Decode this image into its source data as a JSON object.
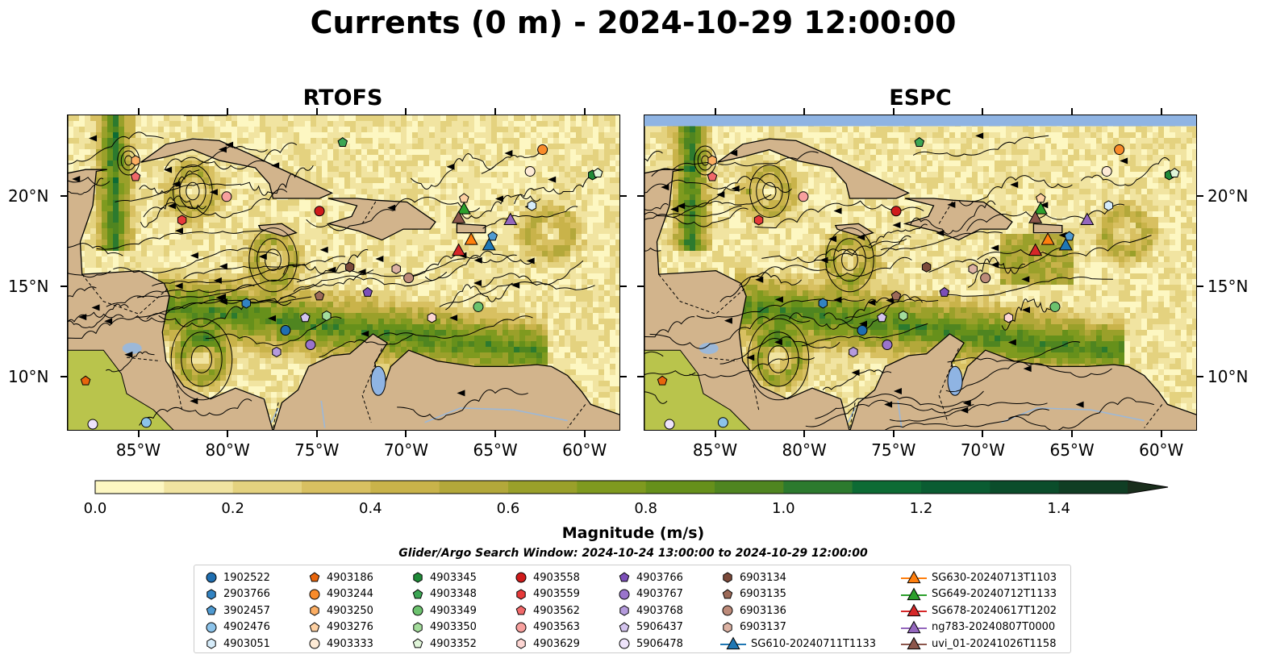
{
  "title": "Currents (0 m) - 2024-10-29 12:00:00",
  "panels": [
    {
      "id": "rtofs",
      "title": "RTOFS"
    },
    {
      "id": "espc",
      "title": "ESPC"
    }
  ],
  "axes": {
    "x_ticks": [
      "85°W",
      "80°W",
      "75°W",
      "70°W",
      "65°W",
      "60°W"
    ],
    "y_ticks": [
      "20°N",
      "15°N",
      "10°N"
    ],
    "lon_range": [
      -89,
      -58
    ],
    "lat_range": [
      7,
      24.5
    ]
  },
  "colorbar": {
    "label": "Magnitude (m/s)",
    "ticks": [
      "0.0",
      "0.2",
      "0.4",
      "0.6",
      "0.8",
      "1.0",
      "1.2",
      "1.4"
    ],
    "range": [
      0,
      1.6
    ],
    "extend": "max",
    "colors": [
      "#fdf7c2",
      "#f1e4a1",
      "#e4d27f",
      "#d8c061",
      "#c9b34a",
      "#b3a83a",
      "#9aa02a",
      "#7f9a1f",
      "#66901b",
      "#4f8520",
      "#2c7a2e",
      "#0d6b34",
      "#0a5c32",
      "#0b4d2b",
      "#103e24",
      "#1a2e1c"
    ]
  },
  "search_window": "Glider/Argo Search Window: 2024-10-24 13:00:00 to 2024-10-29 12:00:00",
  "legend": [
    {
      "label": "1902522",
      "marker": "circle",
      "color": "#1f6eb0"
    },
    {
      "label": "2903766",
      "marker": "hexagon",
      "color": "#3283c2"
    },
    {
      "label": "3902457",
      "marker": "pentagon",
      "color": "#4f9ad1"
    },
    {
      "label": "4902476",
      "marker": "circle",
      "color": "#8cc3ea"
    },
    {
      "label": "4903051",
      "marker": "hexagon",
      "color": "#d6ecfa"
    },
    {
      "label": "4903186",
      "marker": "pentagon",
      "color": "#e8650c"
    },
    {
      "label": "4903244",
      "marker": "circle",
      "color": "#f98b2a"
    },
    {
      "label": "4903250",
      "marker": "hexagon",
      "color": "#fcae63"
    },
    {
      "label": "4903276",
      "marker": "pentagon",
      "color": "#fdd0a2"
    },
    {
      "label": "4903333",
      "marker": "circle",
      "color": "#feebd6"
    },
    {
      "label": "4903345",
      "marker": "hexagon",
      "color": "#1f8a38"
    },
    {
      "label": "4903348",
      "marker": "pentagon",
      "color": "#3ca654"
    },
    {
      "label": "4903349",
      "marker": "circle",
      "color": "#6cc26e"
    },
    {
      "label": "4903350",
      "marker": "hexagon",
      "color": "#a3dc9b"
    },
    {
      "label": "4903352",
      "marker": "pentagon",
      "color": "#e0f5d9"
    },
    {
      "label": "4903558",
      "marker": "circle",
      "color": "#cf1b1b"
    },
    {
      "label": "4903559",
      "marker": "hexagon",
      "color": "#e63a3a"
    },
    {
      "label": "4903562",
      "marker": "pentagon",
      "color": "#f1696a"
    },
    {
      "label": "4903563",
      "marker": "circle",
      "color": "#f7a09e"
    },
    {
      "label": "4903629",
      "marker": "hexagon",
      "color": "#fdd6d3"
    },
    {
      "label": "4903766",
      "marker": "pentagon",
      "color": "#7c4fb8"
    },
    {
      "label": "4903767",
      "marker": "circle",
      "color": "#9a74cc"
    },
    {
      "label": "4903768",
      "marker": "hexagon",
      "color": "#b59bdd"
    },
    {
      "label": "5906437",
      "marker": "pentagon",
      "color": "#d4c4ee"
    },
    {
      "label": "5906478",
      "marker": "circle",
      "color": "#eee3fb"
    },
    {
      "label": "6903134",
      "marker": "hexagon",
      "color": "#7b4a3a"
    },
    {
      "label": "6903135",
      "marker": "pentagon",
      "color": "#9c6a58"
    },
    {
      "label": "6903136",
      "marker": "circle",
      "color": "#bd8b7a"
    },
    {
      "label": "6903137",
      "marker": "hexagon",
      "color": "#dcb2a3"
    },
    {
      "label": "SG610-20240711T1133",
      "marker": "triangle-line",
      "color": "#1f77b4"
    },
    {
      "label": "SG630-20240713T1103",
      "marker": "triangle-line",
      "color": "#ff7f0e"
    },
    {
      "label": "SG649-20240712T1133",
      "marker": "triangle-line",
      "color": "#2ca02c"
    },
    {
      "label": "SG678-20240617T1202",
      "marker": "triangle-line",
      "color": "#d62728"
    },
    {
      "label": "ng783-20240807T0000",
      "marker": "triangle-line",
      "color": "#9467bd"
    },
    {
      "label": "uvi_01-20241026T1158",
      "marker": "triangle-line",
      "color": "#8c564b"
    }
  ],
  "observations": {
    "rtofs": [
      {
        "id": "1902522",
        "lon": -76.8,
        "lat": 12.6
      },
      {
        "id": "2903766",
        "lon": -79.0,
        "lat": 14.1
      },
      {
        "id": "3902457",
        "lon": -65.2,
        "lat": 17.8
      },
      {
        "id": "4902476",
        "lon": -84.6,
        "lat": 7.5
      },
      {
        "id": "4903051",
        "lon": -63.0,
        "lat": 19.5
      },
      {
        "id": "4903186",
        "lon": -88.0,
        "lat": 9.8
      },
      {
        "id": "4903244",
        "lon": -62.4,
        "lat": 22.6
      },
      {
        "id": "4903250",
        "lon": -85.2,
        "lat": 22.0
      },
      {
        "id": "4903276",
        "lon": -66.8,
        "lat": 19.9
      },
      {
        "id": "4903333",
        "lon": -63.1,
        "lat": 21.4
      },
      {
        "id": "4903345",
        "lon": -59.6,
        "lat": 21.2
      },
      {
        "id": "4903348",
        "lon": -73.6,
        "lat": 23.0
      },
      {
        "id": "4903349",
        "lon": -66.0,
        "lat": 13.9
      },
      {
        "id": "4903350",
        "lon": -74.5,
        "lat": 13.4
      },
      {
        "id": "4903352",
        "lon": -59.3,
        "lat": 21.3
      },
      {
        "id": "4903558",
        "lon": -74.9,
        "lat": 19.2
      },
      {
        "id": "4903559",
        "lon": -82.6,
        "lat": 18.7
      },
      {
        "id": "4903562",
        "lon": -85.2,
        "lat": 21.1
      },
      {
        "id": "4903563",
        "lon": -80.1,
        "lat": 20.0
      },
      {
        "id": "4903629",
        "lon": -68.6,
        "lat": 13.3
      },
      {
        "id": "4903766",
        "lon": -72.2,
        "lat": 14.7
      },
      {
        "id": "4903767",
        "lon": -75.4,
        "lat": 11.8
      },
      {
        "id": "4903768",
        "lon": -77.3,
        "lat": 11.4
      },
      {
        "id": "5906437",
        "lon": -75.7,
        "lat": 13.3
      },
      {
        "id": "5906478",
        "lon": -87.6,
        "lat": 7.4
      },
      {
        "id": "6903134",
        "lon": -73.2,
        "lat": 16.1
      },
      {
        "id": "6903135",
        "lon": -74.9,
        "lat": 14.5
      },
      {
        "id": "6903136",
        "lon": -69.9,
        "lat": 15.5
      },
      {
        "id": "6903137",
        "lon": -70.6,
        "lat": 16.0
      }
    ],
    "espc": [
      {
        "id": "1902522",
        "lon": -76.8,
        "lat": 12.6
      },
      {
        "id": "2903766",
        "lon": -79.0,
        "lat": 14.1
      },
      {
        "id": "3902457",
        "lon": -65.2,
        "lat": 17.8
      },
      {
        "id": "4902476",
        "lon": -84.6,
        "lat": 7.5
      },
      {
        "id": "4903051",
        "lon": -63.0,
        "lat": 19.5
      },
      {
        "id": "4903186",
        "lon": -88.0,
        "lat": 9.8
      },
      {
        "id": "4903244",
        "lon": -62.4,
        "lat": 22.6
      },
      {
        "id": "4903250",
        "lon": -85.2,
        "lat": 22.0
      },
      {
        "id": "4903276",
        "lon": -66.8,
        "lat": 19.9
      },
      {
        "id": "4903333",
        "lon": -63.1,
        "lat": 21.4
      },
      {
        "id": "4903345",
        "lon": -59.6,
        "lat": 21.2
      },
      {
        "id": "4903348",
        "lon": -73.6,
        "lat": 23.0
      },
      {
        "id": "4903349",
        "lon": -66.0,
        "lat": 13.9
      },
      {
        "id": "4903350",
        "lon": -74.5,
        "lat": 13.4
      },
      {
        "id": "4903352",
        "lon": -59.3,
        "lat": 21.3
      },
      {
        "id": "4903558",
        "lon": -74.9,
        "lat": 19.2
      },
      {
        "id": "4903559",
        "lon": -82.6,
        "lat": 18.7
      },
      {
        "id": "4903562",
        "lon": -85.2,
        "lat": 21.1
      },
      {
        "id": "4903563",
        "lon": -80.1,
        "lat": 20.0
      },
      {
        "id": "4903629",
        "lon": -68.6,
        "lat": 13.3
      },
      {
        "id": "4903766",
        "lon": -72.2,
        "lat": 14.7
      },
      {
        "id": "4903767",
        "lon": -75.4,
        "lat": 11.8
      },
      {
        "id": "4903768",
        "lon": -77.3,
        "lat": 11.4
      },
      {
        "id": "5906437",
        "lon": -75.7,
        "lat": 13.3
      },
      {
        "id": "5906478",
        "lon": -87.6,
        "lat": 7.4
      },
      {
        "id": "6903134",
        "lon": -73.2,
        "lat": 16.1
      },
      {
        "id": "6903135",
        "lon": -74.9,
        "lat": 14.5
      },
      {
        "id": "6903136",
        "lon": -69.9,
        "lat": 15.5
      },
      {
        "id": "6903137",
        "lon": -70.6,
        "lat": 16.0
      }
    ],
    "gliders": [
      {
        "id": "SG610-20240711T1133",
        "lon": -65.4,
        "lat": 17.3
      },
      {
        "id": "SG630-20240713T1103",
        "lon": -66.4,
        "lat": 17.6
      },
      {
        "id": "SG649-20240712T1133",
        "lon": -66.8,
        "lat": 19.3
      },
      {
        "id": "SG678-20240617T1202",
        "lon": -67.1,
        "lat": 17.0
      },
      {
        "id": "ng783-20240807T0000",
        "lon": -64.2,
        "lat": 18.7
      },
      {
        "id": "uvi_01-20241026T1158",
        "lon": -67.1,
        "lat": 18.8
      }
    ]
  }
}
